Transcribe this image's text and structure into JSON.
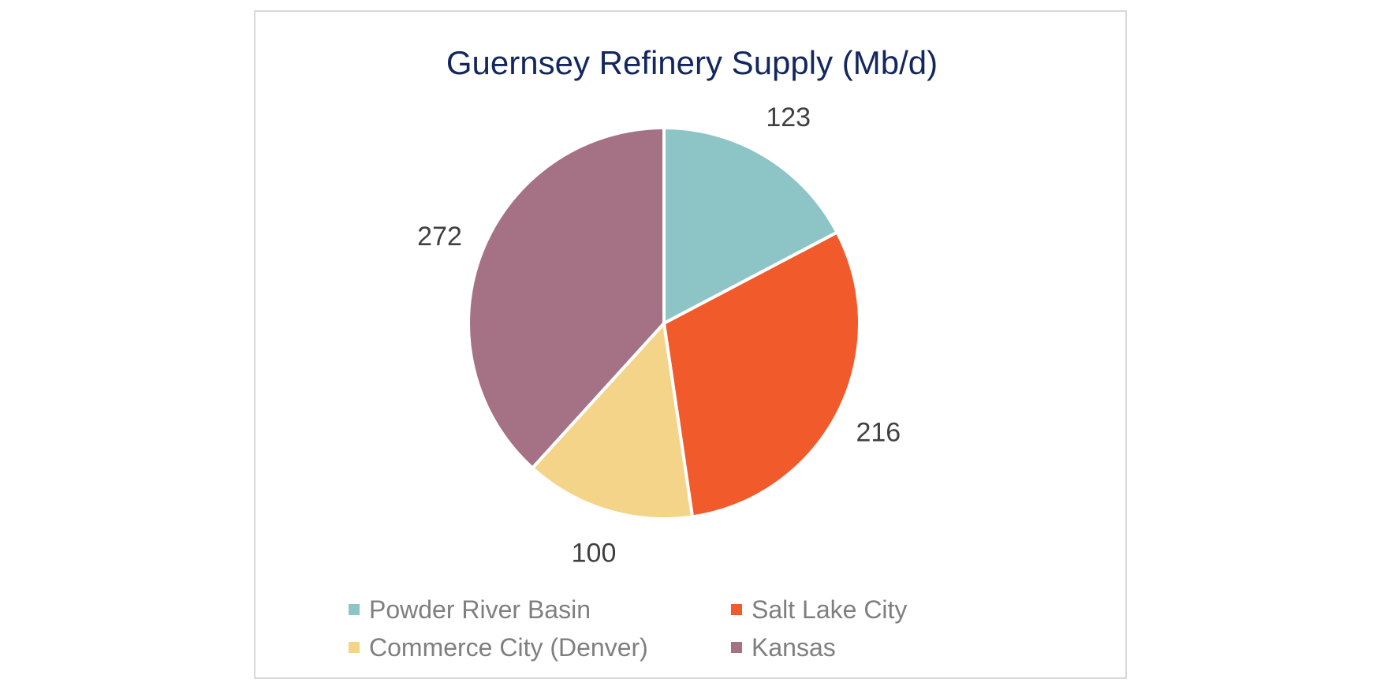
{
  "chart_data": {
    "type": "pie",
    "title": "Guernsey Refinery Supply (Mb/d)",
    "categories": [
      "Powder River Basin",
      "Salt Lake City",
      "Commerce City (Denver)",
      "Kansas"
    ],
    "values": [
      123,
      216,
      100,
      272
    ],
    "value_labels": [
      "123",
      "216",
      "100",
      "272"
    ],
    "colors": [
      "#8dc5c7",
      "#f15a2b",
      "#f4d488",
      "#a57184"
    ],
    "legend_position": "bottom",
    "start_angle": "12 o'clock",
    "direction": "clockwise"
  }
}
